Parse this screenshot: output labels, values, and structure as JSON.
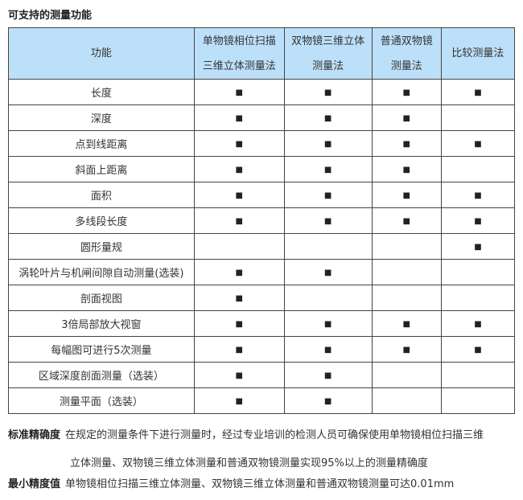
{
  "title": "可支持的测量功能",
  "table": {
    "headers": [
      "功能",
      "单物镜相位扫描三维立体测量法",
      "双物镜三维立体测量法",
      "普通双物镜测量法",
      "比较测量法"
    ],
    "header_lines": [
      [
        "功能"
      ],
      [
        "单物镜相位扫描",
        "三维立体测量法"
      ],
      [
        "双物镜三维立体",
        "测量法"
      ],
      [
        "普通双物镜",
        "测量法"
      ],
      [
        "比较测量法"
      ]
    ],
    "mark_symbol": "■",
    "rows": [
      {
        "feature": "长度",
        "marks": [
          true,
          true,
          true,
          true
        ]
      },
      {
        "feature": "深度",
        "marks": [
          true,
          true,
          true,
          false
        ]
      },
      {
        "feature": "点到线距离",
        "marks": [
          true,
          true,
          true,
          true
        ]
      },
      {
        "feature": "斜面上距离",
        "marks": [
          true,
          true,
          true,
          false
        ]
      },
      {
        "feature": "面积",
        "marks": [
          true,
          true,
          true,
          true
        ]
      },
      {
        "feature": "多线段长度",
        "marks": [
          true,
          true,
          true,
          true
        ]
      },
      {
        "feature": "圆形量规",
        "marks": [
          false,
          false,
          false,
          true
        ]
      },
      {
        "feature": "涡轮叶片与机闸间隙自动测量(选装)",
        "marks": [
          true,
          true,
          false,
          false
        ]
      },
      {
        "feature": "剖面视图",
        "marks": [
          true,
          false,
          false,
          false
        ]
      },
      {
        "feature": "3倍局部放大视窗",
        "marks": [
          true,
          true,
          true,
          true
        ]
      },
      {
        "feature": "每幅图可进行5次测量",
        "marks": [
          true,
          true,
          true,
          true
        ]
      },
      {
        "feature": "区域深度剖面测量（选装）",
        "marks": [
          true,
          true,
          false,
          false
        ]
      },
      {
        "feature": "测量平面（选装）",
        "marks": [
          true,
          true,
          false,
          false
        ]
      }
    ]
  },
  "notes": {
    "accuracy_label": "标准精确度",
    "accuracy_line1": "在规定的测量条件下进行测量时，经过专业培训的检测人员可确保使用单物镜相位扫描三维",
    "accuracy_line2": "立体测量、双物镜三维立体测量和普通双物镜测量实现95%以上的测量精确度",
    "min_label": "最小精度值",
    "min_text": "单物镜相位扫描三维立体测量、双物镜三维立体测量和普通双物镜测量可达0.01mm"
  },
  "colors": {
    "header_bg": "#bde0fa",
    "border": "#444444"
  }
}
